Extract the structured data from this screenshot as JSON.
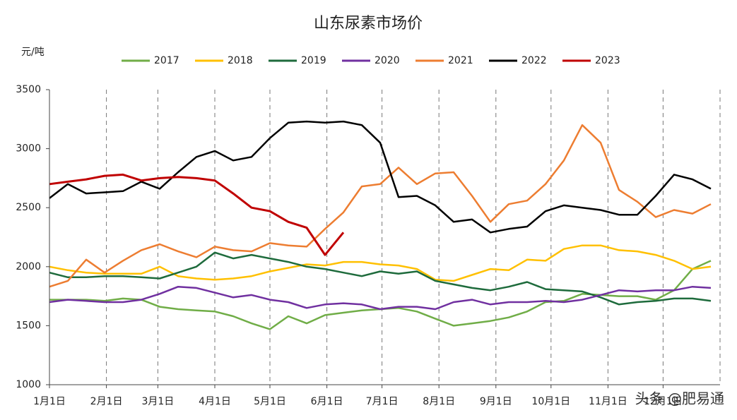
{
  "chart_data": {
    "type": "line",
    "title": "山东尿素市场价",
    "y_label": "元/吨",
    "watermark": "头条 @肥易通",
    "x": [
      0,
      10,
      20,
      30,
      40,
      50,
      60,
      70,
      80,
      90,
      100,
      110,
      120,
      130,
      140,
      150,
      160,
      170,
      180,
      190,
      200,
      210,
      220,
      230,
      240,
      250,
      260,
      270,
      280,
      290,
      300,
      310,
      320,
      330,
      340,
      350,
      360
    ],
    "xlim": [
      0,
      365
    ],
    "xticks": [
      {
        "value": 0,
        "label": "1月1日"
      },
      {
        "value": 31,
        "label": "2月1日"
      },
      {
        "value": 59,
        "label": "3月1日"
      },
      {
        "value": 90,
        "label": "4月1日"
      },
      {
        "value": 120,
        "label": "5月1日"
      },
      {
        "value": 151,
        "label": "6月1日"
      },
      {
        "value": 181,
        "label": "7月1日"
      },
      {
        "value": 212,
        "label": "8月1日"
      },
      {
        "value": 243,
        "label": "9月1日"
      },
      {
        "value": 273,
        "label": "10月1日"
      },
      {
        "value": 304,
        "label": "11月1日"
      },
      {
        "value": 334,
        "label": "12月1日"
      }
    ],
    "ylim": [
      1000,
      3500
    ],
    "yticks": [
      1000,
      1500,
      2000,
      2500,
      3000,
      3500
    ],
    "grid": true,
    "legend": "top",
    "series": [
      {
        "name": "2017",
        "color": "#70ad47",
        "values": [
          1720,
          1720,
          1720,
          1710,
          1730,
          1720,
          1660,
          1640,
          1630,
          1620,
          1580,
          1520,
          1470,
          1580,
          1520,
          1590,
          1610,
          1630,
          1640,
          1650,
          1620,
          1560,
          1500,
          1520,
          1540,
          1570,
          1620,
          1700,
          1710,
          1770,
          1760,
          1750,
          1750,
          1720,
          1800,
          1980,
          2050
        ]
      },
      {
        "name": "2018",
        "color": "#ffc000",
        "values": [
          2000,
          1970,
          1950,
          1940,
          1940,
          1940,
          2000,
          1920,
          1900,
          1890,
          1900,
          1920,
          1960,
          1990,
          2020,
          2010,
          2040,
          2040,
          2020,
          2010,
          1980,
          1890,
          1880,
          1930,
          1980,
          1970,
          2060,
          2050,
          2150,
          2180,
          2180,
          2140,
          2130,
          2100,
          2050,
          1980,
          2000
        ]
      },
      {
        "name": "2019",
        "color": "#1e6b3c",
        "values": [
          1950,
          1910,
          1910,
          1920,
          1920,
          1910,
          1900,
          1950,
          2000,
          2120,
          2070,
          2100,
          2070,
          2040,
          2000,
          1980,
          1950,
          1920,
          1960,
          1940,
          1960,
          1880,
          1850,
          1820,
          1800,
          1830,
          1870,
          1810,
          1800,
          1790,
          1740,
          1680,
          1700,
          1710,
          1730,
          1730,
          1710
        ]
      },
      {
        "name": "2020",
        "color": "#7030a0",
        "values": [
          1700,
          1720,
          1710,
          1700,
          1700,
          1720,
          1770,
          1830,
          1820,
          1780,
          1740,
          1760,
          1720,
          1700,
          1650,
          1680,
          1690,
          1680,
          1640,
          1660,
          1660,
          1640,
          1700,
          1720,
          1680,
          1700,
          1700,
          1710,
          1700,
          1720,
          1760,
          1800,
          1790,
          1800,
          1800,
          1830,
          1820
        ]
      },
      {
        "name": "2021",
        "color": "#ed7d31",
        "values": [
          1830,
          1880,
          2060,
          1950,
          2050,
          2140,
          2190,
          2130,
          2080,
          2170,
          2140,
          2130,
          2200,
          2180,
          2170,
          2320,
          2460,
          2680,
          2700,
          2840,
          2700,
          2790,
          2800,
          2600,
          2380,
          2530,
          2560,
          2700,
          2900,
          3200,
          3050,
          2650,
          2550,
          2420,
          2480,
          2450,
          2530
        ]
      },
      {
        "name": "2022",
        "color": "#000000",
        "values": [
          2580,
          2700,
          2620,
          2630,
          2640,
          2720,
          2660,
          2800,
          2930,
          2980,
          2900,
          2930,
          3090,
          3220,
          3230,
          3220,
          3230,
          3200,
          3050,
          2590,
          2600,
          2520,
          2380,
          2400,
          2290,
          2320,
          2340,
          2470,
          2520,
          2500,
          2480,
          2440,
          2440,
          2600,
          2780,
          2740,
          2660
        ]
      },
      {
        "name": "2023",
        "color": "#c00000",
        "values": [
          2700,
          2720,
          2740,
          2770,
          2780,
          2730,
          2750,
          2760,
          2750,
          2730,
          2620,
          2500,
          2470,
          2380,
          2330,
          2100,
          2290,
          null,
          null,
          null,
          null,
          null,
          null,
          null,
          null,
          null,
          null,
          null,
          null,
          null,
          null,
          null,
          null,
          null,
          null,
          null,
          null
        ]
      }
    ]
  }
}
